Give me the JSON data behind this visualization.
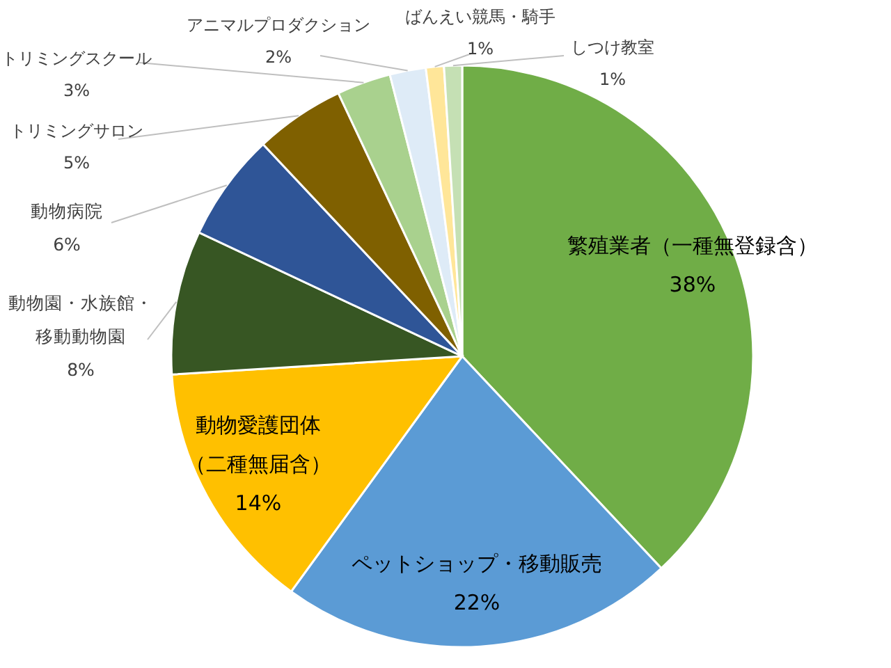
{
  "chart_data": {
    "type": "pie",
    "categories": [
      "繁殖業者（一種無登録含）",
      "ペットショップ・移動販売",
      "動物愛護団体（二種無届含）",
      "動物園・水族館・移動動物園",
      "動物病院",
      "トリミングサロン",
      "トリミングスクール",
      "アニマルプロダクション",
      "ばんえい競馬・騎手",
      "しつけ教室"
    ],
    "values": [
      38,
      22,
      14,
      8,
      6,
      5,
      3,
      2,
      1,
      1
    ],
    "colors": [
      "#70ad47",
      "#5b9bd5",
      "#ffc000",
      "#375623",
      "#2f5597",
      "#7f6000",
      "#a9d18e",
      "#deebf7",
      "#ffe699",
      "#c5e0b4"
    ],
    "value_labels": [
      "38%",
      "22%",
      "14%",
      "8%",
      "6%",
      "5%",
      "3%",
      "2%",
      "1%",
      "1%"
    ]
  }
}
